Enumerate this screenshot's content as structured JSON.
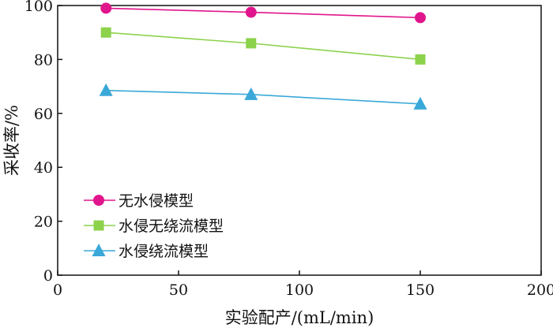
{
  "chart_data": {
    "type": "line",
    "xlabel": "实验配产/(mL/min)",
    "ylabel": "采收率/%",
    "xlim": [
      0,
      200
    ],
    "ylim": [
      0,
      100
    ],
    "xticks": [
      "0",
      "50",
      "100",
      "150",
      "200"
    ],
    "yticks": [
      "0",
      "20",
      "40",
      "60",
      "80",
      "100"
    ],
    "grid": false,
    "legend_position": "bottom-left",
    "series": [
      {
        "name": "无水侵模型",
        "marker": "circle",
        "color": "#e0158c",
        "x": [
          20,
          80,
          150
        ],
        "y": [
          99,
          97.5,
          95.5
        ]
      },
      {
        "name": "水侵无绕流模型",
        "marker": "square",
        "color": "#8cd24b",
        "x": [
          20,
          80,
          150
        ],
        "y": [
          90,
          86,
          80
        ]
      },
      {
        "name": "水侵绕流模型",
        "marker": "triangle",
        "color": "#3aa8d8",
        "x": [
          20,
          80,
          150
        ],
        "y": [
          68.5,
          67,
          63.5
        ]
      }
    ]
  }
}
